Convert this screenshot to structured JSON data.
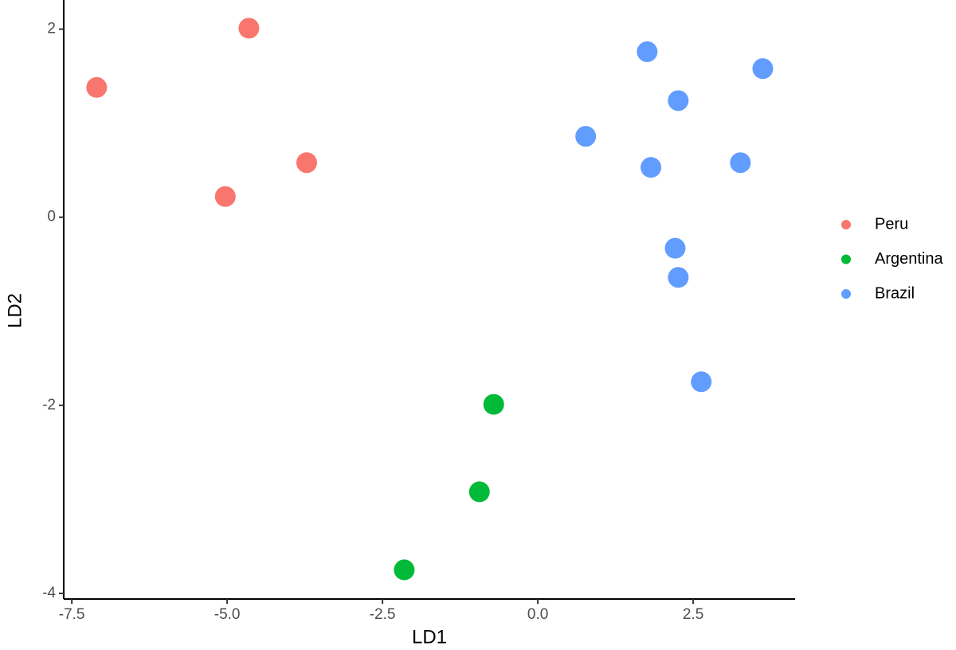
{
  "chart_data": {
    "type": "scatter",
    "xlabel": "LD1",
    "ylabel": "LD2",
    "xlim": [
      -7.63,
      4.14
    ],
    "ylim": [
      -4.06,
      2.31
    ],
    "xticks": [
      {
        "value": -7.5,
        "label": "-7.5"
      },
      {
        "value": -5,
        "label": "-5.0"
      },
      {
        "value": -2.5,
        "label": "-2.5"
      },
      {
        "value": 0,
        "label": "0.0"
      },
      {
        "value": 2.5,
        "label": "2.5"
      }
    ],
    "yticks": [
      2,
      0,
      -2,
      -4
    ],
    "grid": false,
    "legend": "right",
    "series": [
      {
        "name": "Peru",
        "color": "#F8766D",
        "x": [
          -7.1,
          -4.65,
          -3.72,
          -5.03
        ],
        "values": [
          1.38,
          2.01,
          0.58,
          0.22
        ]
      },
      {
        "name": "Argentina",
        "color": "#00BA38",
        "x": [
          -0.71,
          -0.94,
          -2.15
        ],
        "values": [
          -1.99,
          -2.92,
          -3.75
        ]
      },
      {
        "name": "Brazil",
        "color": "#619CFF",
        "x": [
          1.76,
          3.62,
          2.26,
          0.77,
          1.82,
          3.26,
          2.21,
          2.26,
          2.63
        ],
        "values": [
          1.76,
          1.58,
          1.24,
          0.86,
          0.53,
          0.58,
          -0.33,
          -0.64,
          -1.75
        ]
      }
    ]
  }
}
